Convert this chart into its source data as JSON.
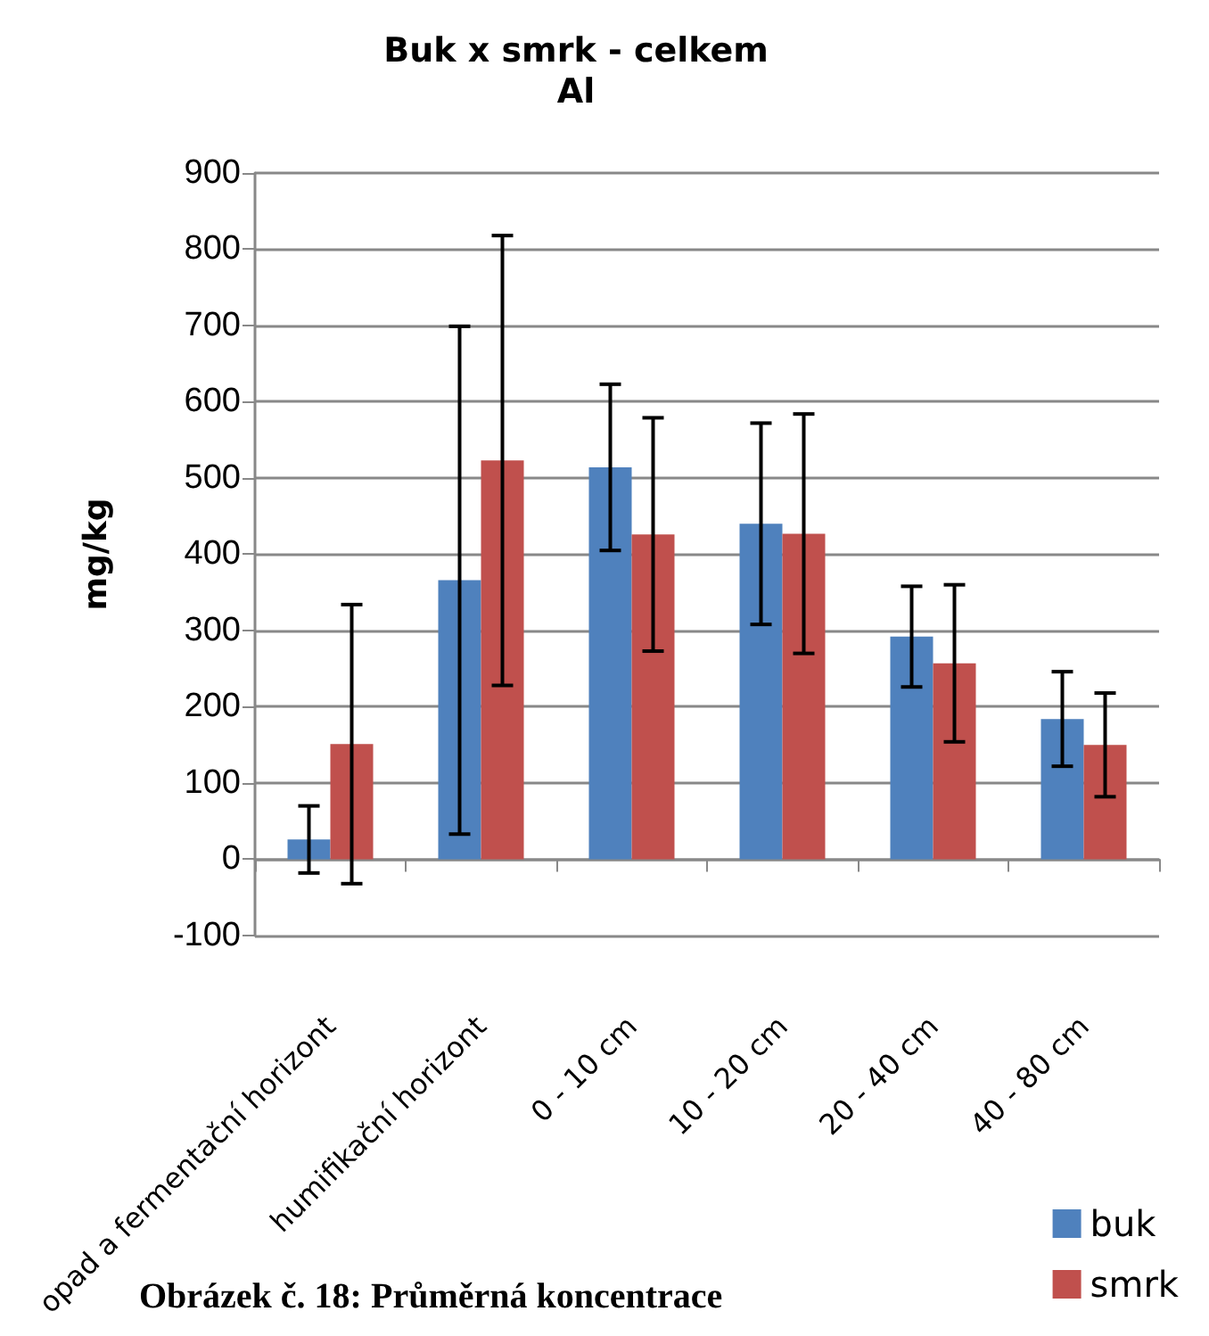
{
  "chart_data": {
    "type": "bar",
    "title": "Buk x smrk - celkem",
    "subtitle": "Al",
    "ylabel": "mg/kg",
    "categories": [
      "opad a fermentační horizont",
      "humifikační horizont",
      "0 - 10 cm",
      "10 - 20 cm",
      "20 - 40 cm",
      "40 - 80 cm"
    ],
    "series": [
      {
        "name": "buk",
        "color": "#4f81bd",
        "values": [
          26,
          366,
          514,
          440,
          292,
          184
        ],
        "errors": [
          44,
          333,
          109,
          132,
          66,
          62
        ]
      },
      {
        "name": "smrk",
        "color": "#c0504d",
        "values": [
          151,
          523,
          426,
          427,
          257,
          150
        ],
        "errors": [
          183,
          295,
          153,
          157,
          103,
          68
        ]
      }
    ],
    "ylim": [
      -100,
      900
    ],
    "yticks": [
      -100,
      0,
      100,
      200,
      300,
      400,
      500,
      600,
      700,
      800,
      900
    ],
    "grid": "y",
    "legend": "bottom right",
    "annotations": [
      "Obrázek č. 18: Průměrná koncentrace"
    ]
  }
}
